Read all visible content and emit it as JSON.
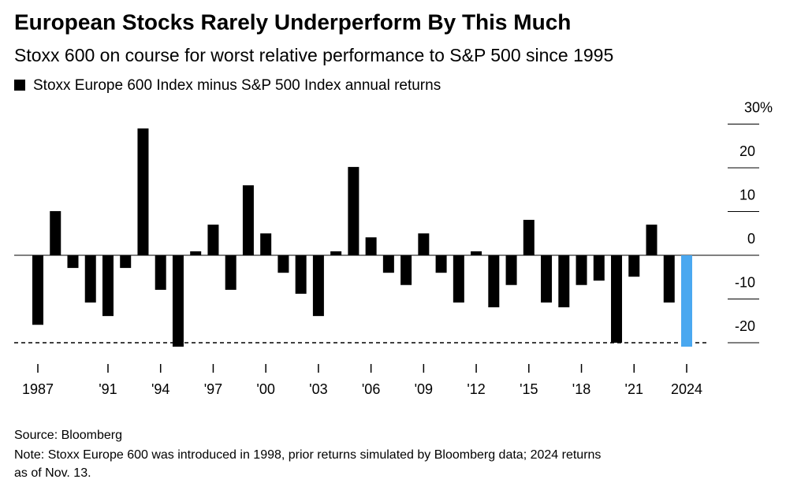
{
  "chart_data": {
    "type": "bar",
    "title": "European Stocks Rarely Underperform By This Much",
    "subtitle": "Stoxx 600 on course for worst relative performance to S&P 500 since 1995",
    "categories": [
      "1987",
      null,
      null,
      null,
      "'91",
      null,
      null,
      "'94",
      null,
      null,
      "'97",
      null,
      null,
      "'00",
      null,
      null,
      "'03",
      null,
      null,
      "'06",
      null,
      null,
      "'09",
      null,
      null,
      "'12",
      null,
      null,
      "'15",
      null,
      null,
      "'18",
      null,
      null,
      "'21",
      null,
      null,
      "2024"
    ],
    "series": [
      {
        "name": "Stoxx Europe 600 Index minus S&P 500 Index annual returns",
        "color": "#000000",
        "colors": [
          "#000000",
          "#000000",
          "#000000",
          "#000000",
          "#000000",
          "#000000",
          "#000000",
          "#000000",
          "#000000",
          "#000000",
          "#000000",
          "#000000",
          "#000000",
          "#000000",
          "#000000",
          "#000000",
          "#000000",
          "#000000",
          "#000000",
          "#000000",
          "#000000",
          "#000000",
          "#000000",
          "#000000",
          "#000000",
          "#000000",
          "#000000",
          "#000000",
          "#000000",
          "#000000",
          "#000000",
          "#000000",
          "#000000",
          "#000000",
          "#000000",
          "#000000",
          "#000000",
          "#4aa8f0"
        ],
        "values": [
          -15.9,
          10.1,
          -2.9,
          -10.8,
          -13.9,
          -2.9,
          29.0,
          -7.9,
          -20.9,
          0.9,
          7.0,
          -7.9,
          16.0,
          5.0,
          -4.0,
          -8.8,
          -13.9,
          0.9,
          20.2,
          4.1,
          -4.0,
          -6.8,
          5.0,
          -4.0,
          -10.8,
          0.9,
          -11.9,
          -6.8,
          8.1,
          -10.8,
          -11.9,
          -6.8,
          -5.8,
          -20.0,
          -4.9,
          7.0,
          -10.8,
          -20.9
        ]
      }
    ],
    "ylim": [
      -25,
      30
    ],
    "yticks": [
      -20,
      -10,
      0,
      10,
      20,
      {
        "value": 30,
        "label": "30%"
      }
    ],
    "reference_line": -20,
    "source": "Source: Bloomberg",
    "note": [
      "Note: Stoxx Europe 600 was introduced in 1998, prior returns simulated by Bloomberg data; 2024 returns",
      "as of Nov. 13."
    ]
  }
}
